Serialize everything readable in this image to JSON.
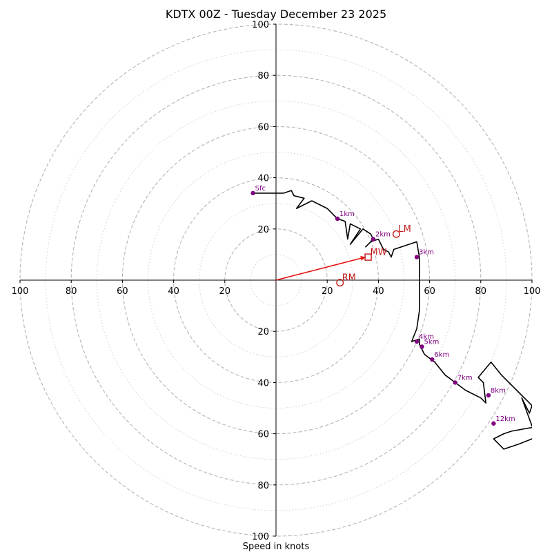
{
  "chart_data": {
    "type": "hodograph",
    "title": "KDTX 00Z - Tuesday December 23 2025",
    "xlabel": "Speed in knots",
    "units": "knots",
    "xlim": [
      -100,
      100
    ],
    "ylim": [
      -100,
      100
    ],
    "ring_major": [
      20,
      40,
      60,
      80,
      100
    ],
    "ring_minor": [
      10,
      30,
      50,
      70,
      90
    ],
    "x_tick_labels": [
      "100",
      "80",
      "60",
      "40",
      "20",
      "20",
      "40",
      "60",
      "80",
      "100"
    ],
    "y_tick_labels": [
      "100",
      "80",
      "60",
      "40",
      "20",
      "20",
      "40",
      "60",
      "80",
      "100"
    ],
    "x_tick_values": [
      -100,
      -80,
      -60,
      -40,
      -20,
      20,
      40,
      60,
      80,
      100
    ],
    "y_tick_values": [
      100,
      80,
      60,
      40,
      20,
      -20,
      -40,
      -60,
      -80,
      -100
    ],
    "trace": [
      [
        -9,
        34
      ],
      [
        3,
        34
      ],
      [
        6,
        35
      ],
      [
        7,
        33
      ],
      [
        11,
        32
      ],
      [
        8,
        28
      ],
      [
        14,
        31
      ],
      [
        20,
        28
      ],
      [
        24,
        24
      ],
      [
        27,
        23
      ],
      [
        28,
        16
      ],
      [
        29,
        22
      ],
      [
        33,
        20
      ],
      [
        29,
        14
      ],
      [
        34,
        20
      ],
      [
        37,
        18
      ],
      [
        38,
        16
      ],
      [
        35,
        13
      ],
      [
        37,
        15
      ],
      [
        40,
        16
      ],
      [
        42,
        12
      ],
      [
        44,
        11
      ],
      [
        45,
        9
      ],
      [
        46,
        12
      ],
      [
        55,
        15
      ],
      [
        56,
        9
      ],
      [
        56,
        0
      ],
      [
        56,
        -4
      ],
      [
        56,
        -12
      ],
      [
        55,
        -19
      ],
      [
        53,
        -24
      ],
      [
        56,
        -23
      ],
      [
        56,
        -25
      ],
      [
        57,
        -27
      ],
      [
        58,
        -29
      ],
      [
        62,
        -32
      ],
      [
        66,
        -37
      ],
      [
        70,
        -40
      ],
      [
        74,
        -43
      ],
      [
        80,
        -46
      ],
      [
        82,
        -48
      ],
      [
        81,
        -40
      ],
      [
        79,
        -38
      ],
      [
        84,
        -32
      ],
      [
        88,
        -37
      ],
      [
        96,
        -45
      ],
      [
        100,
        -49
      ],
      [
        99,
        -52
      ],
      [
        96,
        -46
      ],
      [
        100,
        -57
      ],
      [
        103,
        -57
      ],
      [
        92,
        -59
      ],
      [
        89,
        -60
      ],
      [
        85,
        -62
      ],
      [
        89,
        -66
      ],
      [
        95,
        -64
      ],
      [
        100,
        -62
      ],
      [
        104,
        -61
      ]
    ],
    "height_markers": [
      {
        "label": "Sfc",
        "x": -9,
        "y": 34
      },
      {
        "label": "1km",
        "x": 24,
        "y": 24
      },
      {
        "label": "2km",
        "x": 38,
        "y": 16
      },
      {
        "label": "3km",
        "x": 55,
        "y": 9
      },
      {
        "label": "4km",
        "x": 55,
        "y": -24
      },
      {
        "label": "5km",
        "x": 57,
        "y": -26
      },
      {
        "label": "6km",
        "x": 61,
        "y": -31
      },
      {
        "label": "7km",
        "x": 70,
        "y": -40
      },
      {
        "label": "8km",
        "x": 83,
        "y": -45
      },
      {
        "label": "12km",
        "x": 85,
        "y": -56
      }
    ],
    "storm_motion": [
      {
        "label": "LM",
        "marker": "circle",
        "x": 47,
        "y": 18
      },
      {
        "label": "MW",
        "marker": "square",
        "x": 36,
        "y": 9
      },
      {
        "label": "RM",
        "marker": "circle",
        "x": 25,
        "y": -1
      }
    ],
    "shear_vector": {
      "from": [
        0,
        0
      ],
      "to": [
        35,
        9
      ]
    }
  }
}
